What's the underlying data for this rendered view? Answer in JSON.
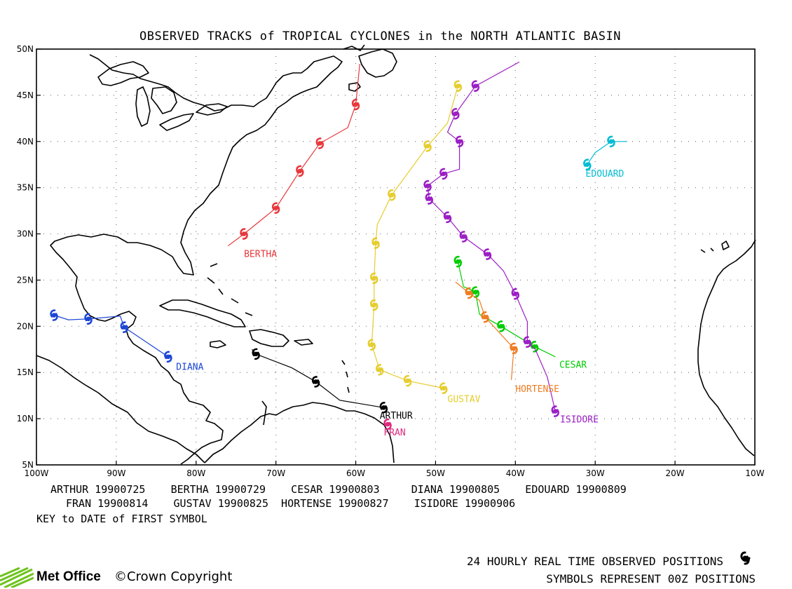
{
  "title": "OBSERVED TRACKS of TROPICAL CYCLONES in the NORTH ATLANTIC BASIN",
  "axes": {
    "lat_ticks": [
      "50N",
      "45N",
      "40N",
      "35N",
      "30N",
      "25N",
      "20N",
      "15N",
      "10N",
      "5N"
    ],
    "lon_ticks": [
      "100W",
      "90W",
      "80W",
      "70W",
      "60W",
      "50W",
      "40W",
      "30W",
      "20W",
      "10W"
    ],
    "lat_range": [
      5,
      50
    ],
    "lon_range": [
      -100,
      -10
    ],
    "grid": "dotted"
  },
  "storms": [
    {
      "name": "ARTHUR",
      "color": "#000000",
      "first_date": "19900725",
      "positions": [
        [
          -72.5,
          17
        ],
        [
          -65,
          14
        ],
        [
          -56.5,
          11.2
        ]
      ],
      "track": [
        [
          -73,
          17.5
        ],
        [
          -72.5,
          17
        ],
        [
          -68,
          15.5
        ],
        [
          -65,
          14
        ],
        [
          -62,
          12
        ],
        [
          -56.5,
          11.2
        ]
      ]
    },
    {
      "name": "BERTHA",
      "color": "#e8383c",
      "first_date": "19900729",
      "positions": [
        [
          -74,
          30
        ],
        [
          -70,
          32.8
        ],
        [
          -67,
          36.8
        ],
        [
          -64.5,
          39.8
        ],
        [
          -60,
          44
        ]
      ],
      "track": [
        [
          -76,
          28.7
        ],
        [
          -74,
          30
        ],
        [
          -70,
          32.8
        ],
        [
          -67,
          36.8
        ],
        [
          -64.5,
          39.8
        ],
        [
          -61,
          41.5
        ],
        [
          -60,
          44
        ],
        [
          -59.5,
          48.4
        ]
      ]
    },
    {
      "name": "CESAR",
      "color": "#00cc00",
      "first_date": "19900803",
      "positions": [
        [
          -47.2,
          27
        ],
        [
          -45,
          23.7
        ],
        [
          -41.8,
          20
        ],
        [
          -37.6,
          17.8
        ]
      ],
      "track": [
        [
          -47.2,
          27
        ],
        [
          -46.5,
          24.3
        ],
        [
          -45,
          23.7
        ],
        [
          -44.5,
          21.3
        ],
        [
          -41.8,
          20
        ],
        [
          -37.6,
          17.8
        ],
        [
          -35,
          16.7
        ]
      ]
    },
    {
      "name": "DIANA",
      "color": "#1c46d6",
      "first_date": "19900805",
      "positions": [
        [
          -97.8,
          21.2
        ],
        [
          -93.5,
          20.8
        ],
        [
          -89,
          19.9
        ],
        [
          -83.5,
          16.7
        ]
      ],
      "track": [
        [
          -97.8,
          21.2
        ],
        [
          -96,
          20.7
        ],
        [
          -93.5,
          20.8
        ],
        [
          -89.5,
          21.1
        ],
        [
          -89,
          19.9
        ],
        [
          -83.5,
          16.7
        ]
      ]
    },
    {
      "name": "EDOUARD",
      "color": "#00bcd4",
      "first_date": "19900809",
      "positions": [
        [
          -31,
          37.5
        ],
        [
          -28,
          40
        ]
      ],
      "track": [
        [
          -31,
          37.5
        ],
        [
          -30,
          38.8
        ],
        [
          -28,
          40
        ],
        [
          -26,
          40
        ]
      ]
    },
    {
      "name": "FRAN",
      "color": "#e0287e",
      "first_date": "19900814",
      "positions": [
        [
          -56,
          9.4
        ]
      ],
      "track": [
        [
          -56,
          9.4
        ]
      ]
    },
    {
      "name": "GUSTAV",
      "color": "#e6cd2e",
      "first_date": "19900825",
      "positions": [
        [
          -47.2,
          46
        ],
        [
          -51,
          39.5
        ],
        [
          -55.5,
          34.2
        ],
        [
          -57.5,
          29
        ],
        [
          -57.7,
          25.2
        ],
        [
          -57.7,
          22.3
        ],
        [
          -58,
          18
        ],
        [
          -57,
          15.3
        ],
        [
          -53.5,
          14.1
        ],
        [
          -49,
          13.3
        ]
      ],
      "track": [
        [
          -47.2,
          46
        ],
        [
          -48.5,
          42
        ],
        [
          -51,
          39.5
        ],
        [
          -55.5,
          34.2
        ],
        [
          -57.3,
          31
        ],
        [
          -57.5,
          29
        ],
        [
          -57.7,
          25.2
        ],
        [
          -57.7,
          22.3
        ],
        [
          -58,
          18
        ],
        [
          -57,
          15.3
        ],
        [
          -53.5,
          14.1
        ],
        [
          -49,
          13.3
        ]
      ]
    },
    {
      "name": "HORTENSE",
      "color": "#f07c21",
      "first_date": "19900827",
      "positions": [
        [
          -45.8,
          23.6
        ],
        [
          -43.8,
          21
        ],
        [
          -40.2,
          17.6
        ]
      ],
      "track": [
        [
          -47.5,
          24.8
        ],
        [
          -45.8,
          23.6
        ],
        [
          -44.5,
          22.8
        ],
        [
          -43.8,
          21
        ],
        [
          -40.2,
          17.6
        ],
        [
          -40.5,
          14.2
        ]
      ]
    },
    {
      "name": "ISIDORE",
      "color": "#9c1fc4",
      "first_date": "19900906",
      "positions": [
        [
          -38.5,
          18.3
        ],
        [
          -35,
          10.8
        ],
        [
          -40,
          23.5
        ],
        [
          -43.5,
          27.8
        ],
        [
          -46.5,
          29.7
        ],
        [
          -48.5,
          31.8
        ],
        [
          -50.8,
          33.8
        ],
        [
          -51,
          35.2
        ],
        [
          -49,
          36.5
        ],
        [
          -47,
          40
        ],
        [
          -47.5,
          43
        ],
        [
          -45,
          46
        ]
      ],
      "track": [
        [
          -35,
          10.8
        ],
        [
          -36,
          14.5
        ],
        [
          -37.5,
          17.5
        ],
        [
          -38.5,
          18.3
        ],
        [
          -38.5,
          20.5
        ],
        [
          -39,
          21.5
        ],
        [
          -40,
          23.5
        ],
        [
          -41.5,
          26
        ],
        [
          -43.5,
          27.8
        ],
        [
          -46.5,
          29.7
        ],
        [
          -48.5,
          31.8
        ],
        [
          -50.8,
          33.8
        ],
        [
          -51,
          35.2
        ],
        [
          -49,
          36.5
        ],
        [
          -47,
          37
        ],
        [
          -47,
          40
        ],
        [
          -48.5,
          41
        ],
        [
          -47.5,
          43
        ],
        [
          -45,
          46
        ],
        [
          -39.5,
          48.6
        ]
      ]
    }
  ],
  "storm_labels": {
    "ARTHUR": "ARTHUR",
    "BERTHA": "BERTHA",
    "CESAR": "CESAR",
    "DIANA": "DIANA",
    "EDOUARD": "EDOUARD",
    "FRAN": "FRAN",
    "GUSTAV": "GUSTAV",
    "HORTENSE": "HORTENSE",
    "ISIDORE": "ISIDORE"
  },
  "key": {
    "row1": "ARTHUR 19900725    BERTHA 19900729    CESAR 19900803     DIANA 19900805    EDOUARD 19900809",
    "row2": "FRAN 19900814    GUSTAV 19900825  HORTENSE 19900827    ISIDORE 19900906",
    "caption": "KEY to DATE of FIRST SYMBOL"
  },
  "footer": {
    "line1": "24 HOURLY REAL TIME OBSERVED POSITIONS",
    "line2": "SYMBOLS REPRESENT 00Z POSITIONS",
    "logo": "Met Office",
    "copyright": "©Crown Copyright",
    "symbol_icon": "cyclone-symbol-icon"
  }
}
